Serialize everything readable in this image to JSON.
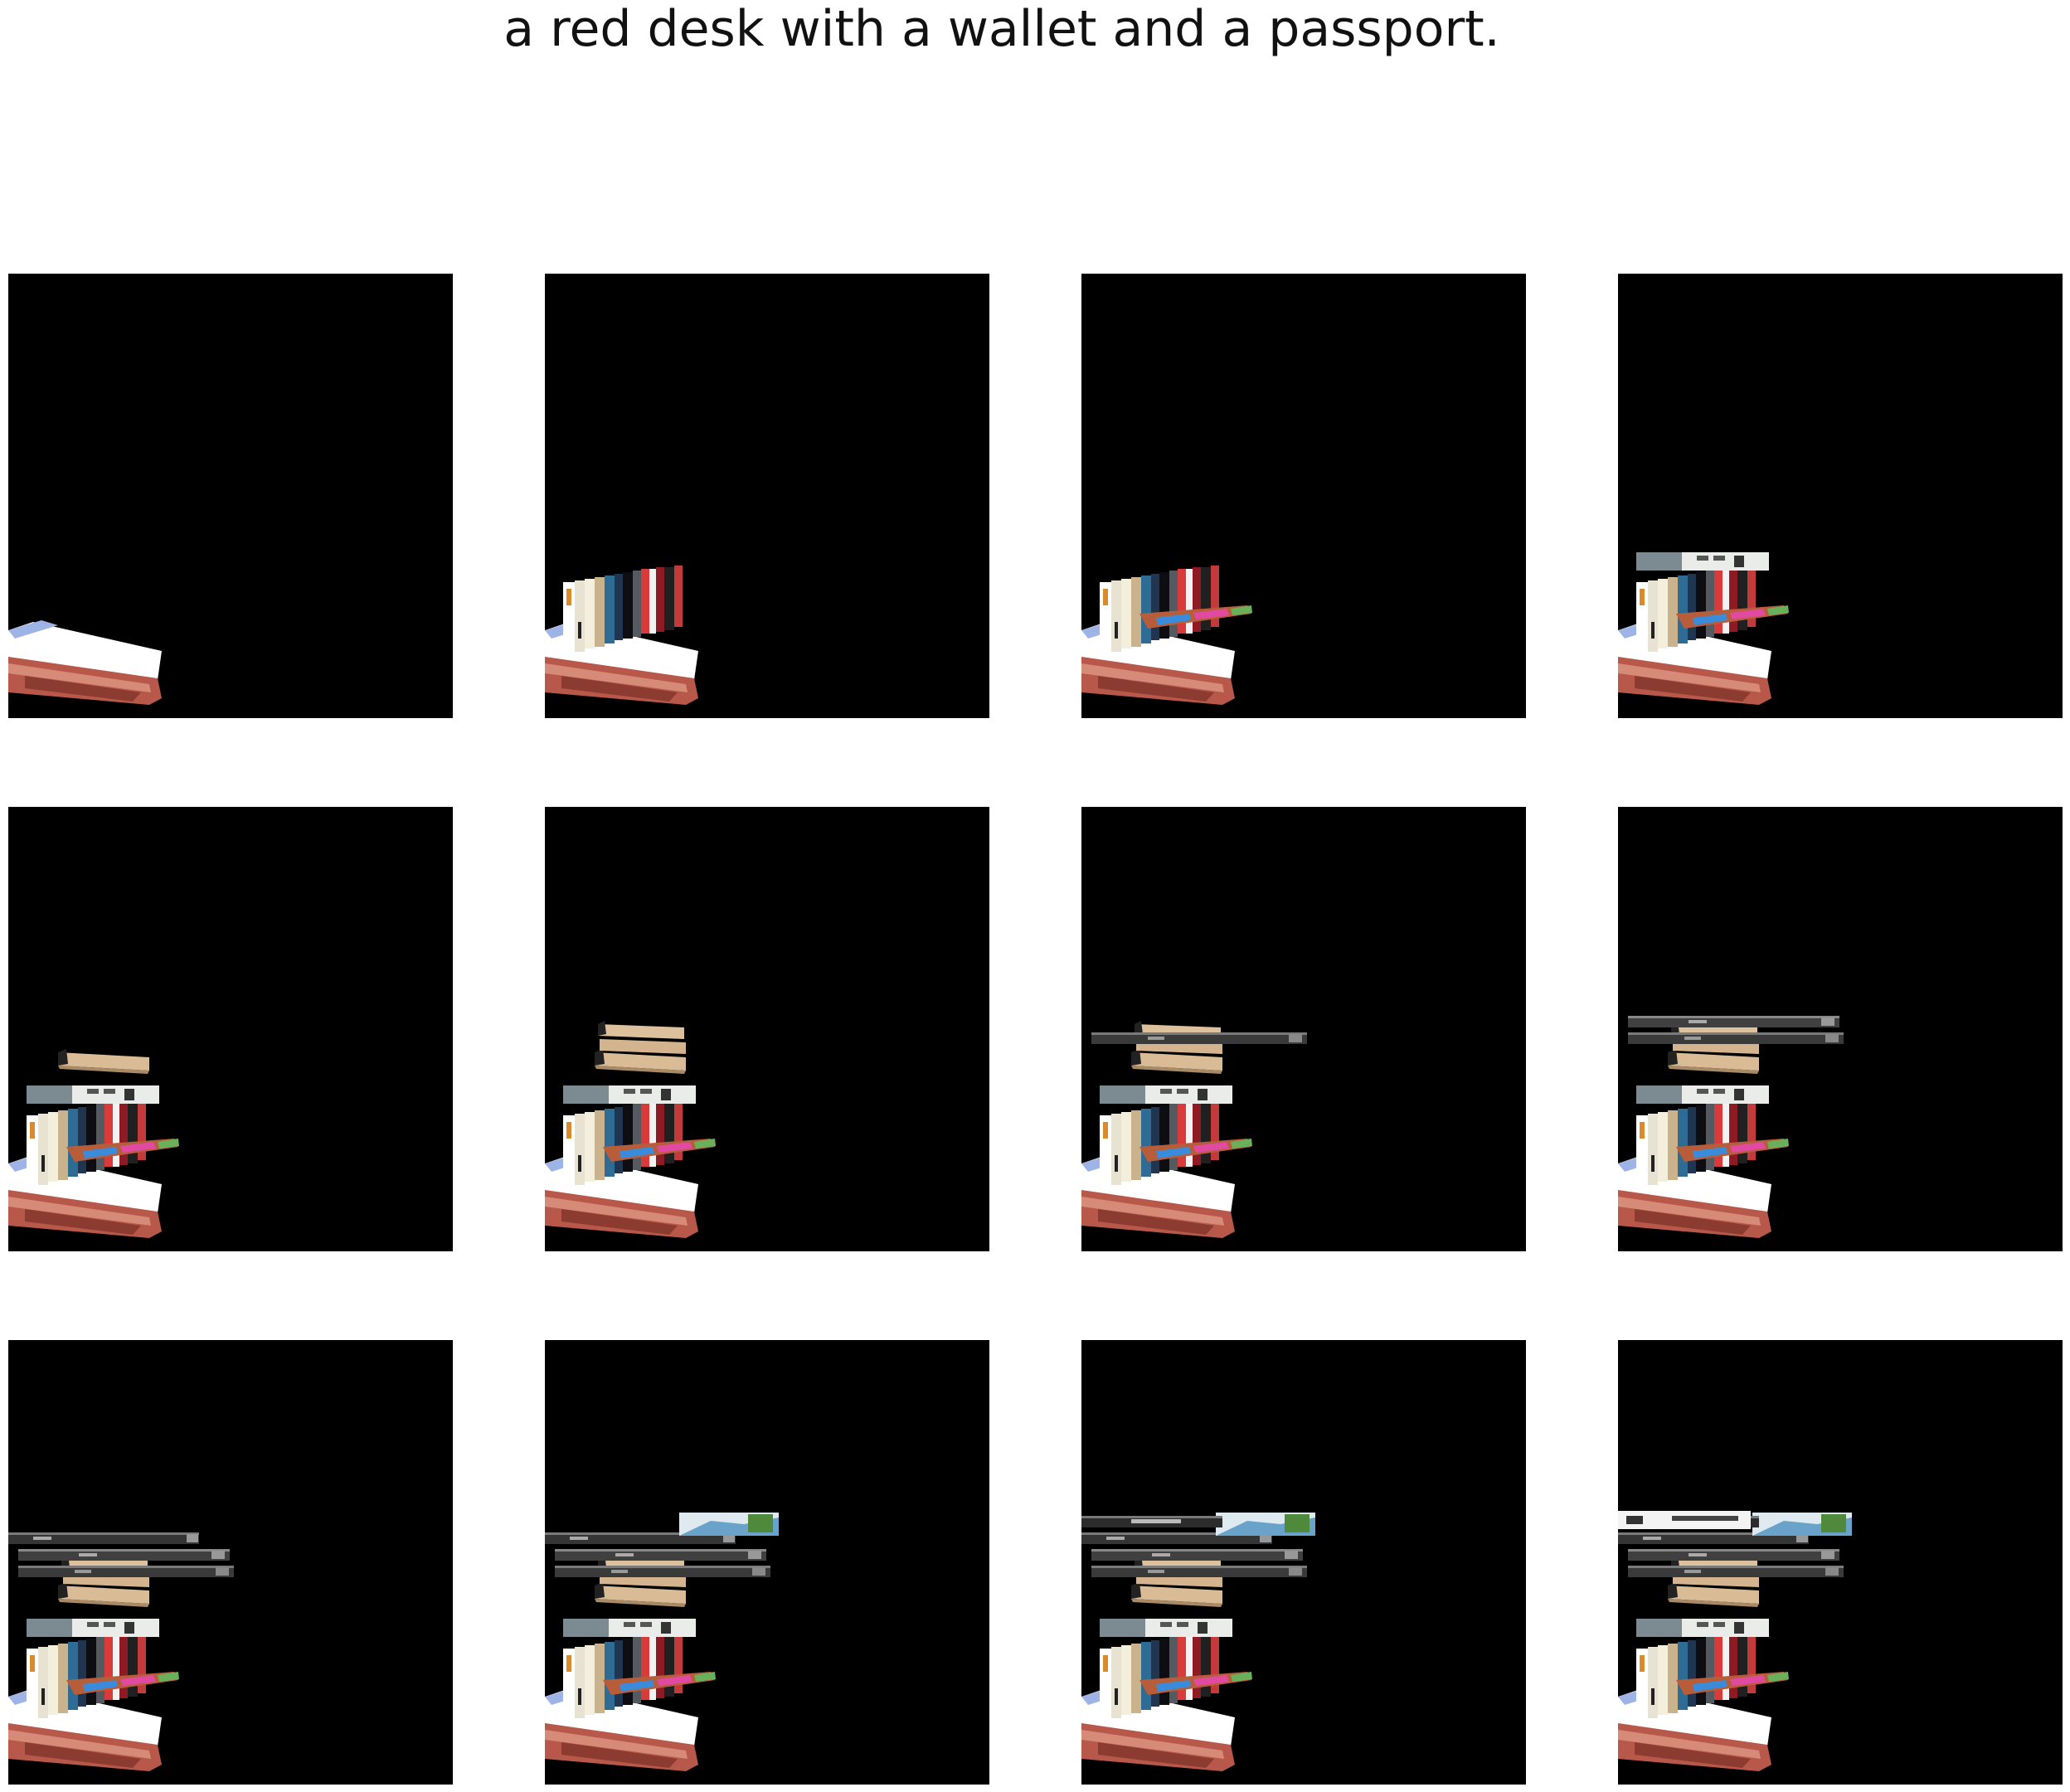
{
  "title": "a red desk with a wallet and a passport.",
  "grid": {
    "rows": 3,
    "columns": 4,
    "panel_count": 12
  },
  "frames": [
    {
      "step": 1,
      "layers": [
        "desk"
      ]
    },
    {
      "step": 2,
      "layers": [
        "desk",
        "book-row"
      ]
    },
    {
      "step": 3,
      "layers": [
        "desk",
        "book-row",
        "shelf"
      ]
    },
    {
      "step": 4,
      "layers": [
        "desk",
        "book-row",
        "shelf",
        "book-stack-1"
      ]
    },
    {
      "step": 5,
      "layers": [
        "desk",
        "book-row",
        "shelf",
        "book-stack-1",
        "tan-book"
      ]
    },
    {
      "step": 6,
      "layers": [
        "desk",
        "book-row",
        "shelf",
        "book-stack-1",
        "tan-book",
        "tan-book-2"
      ]
    },
    {
      "step": 7,
      "layers": [
        "desk",
        "book-row",
        "shelf",
        "book-stack-1",
        "tan-book",
        "tan-book-2",
        "dark-board-1"
      ]
    },
    {
      "step": 8,
      "layers": [
        "desk",
        "book-row",
        "shelf",
        "book-stack-1",
        "tan-book",
        "tan-book-2",
        "dark-board-1",
        "dark-board-2"
      ]
    },
    {
      "step": 9,
      "layers": [
        "desk",
        "book-row",
        "shelf",
        "book-stack-1",
        "tan-book",
        "tan-book-2",
        "dark-board-1",
        "dark-board-2",
        "dark-board-3"
      ]
    },
    {
      "step": 10,
      "layers": [
        "desk",
        "book-row",
        "shelf",
        "book-stack-1",
        "tan-book",
        "tan-book-2",
        "dark-board-1",
        "dark-board-2",
        "dark-board-3",
        "blue-box"
      ]
    },
    {
      "step": 11,
      "layers": [
        "desk",
        "book-row",
        "shelf",
        "book-stack-1",
        "tan-book",
        "tan-book-2",
        "dark-board-1",
        "dark-board-2",
        "dark-board-3",
        "blue-box",
        "dark-board-4"
      ]
    },
    {
      "step": 12,
      "layers": [
        "desk",
        "book-row",
        "shelf",
        "book-stack-1",
        "tan-book",
        "tan-book-2",
        "dark-board-1",
        "dark-board-2",
        "dark-board-3",
        "blue-box",
        "dark-board-4",
        "white-box"
      ]
    }
  ]
}
